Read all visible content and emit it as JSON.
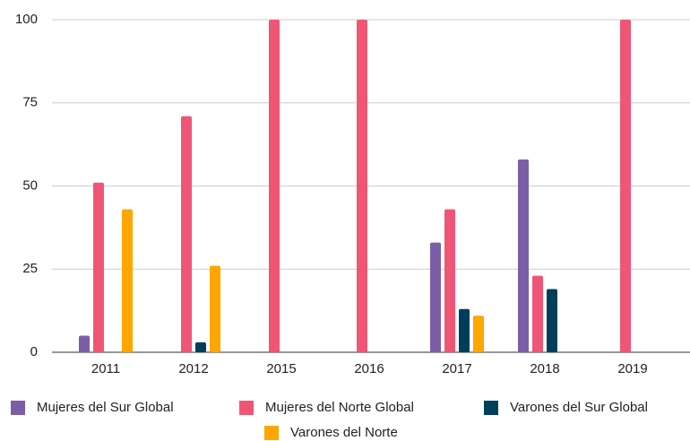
{
  "chart_data": {
    "type": "bar",
    "categories": [
      "2011",
      "2012",
      "2015",
      "2016",
      "2017",
      "2018",
      "2019"
    ],
    "series": [
      {
        "name": "Mujeres del Sur Global",
        "color": "#7b5ea7",
        "values": [
          5,
          0,
          0,
          0,
          33,
          58,
          0
        ]
      },
      {
        "name": "Mujeres del Norte Global",
        "color": "#ef5675",
        "values": [
          51,
          71,
          100,
          100,
          43,
          23,
          100
        ]
      },
      {
        "name": "Varones del Sur Global",
        "color": "#003f5c",
        "values": [
          0,
          3,
          0,
          0,
          13,
          19,
          0
        ]
      },
      {
        "name": "Varones del Norte",
        "color": "#ffa600",
        "values": [
          43,
          26,
          0,
          0,
          11,
          0,
          0
        ]
      }
    ],
    "ylim": [
      0,
      100
    ],
    "yticks": [
      0,
      25,
      50,
      75,
      100
    ],
    "grid": true,
    "legend": "bottom"
  }
}
